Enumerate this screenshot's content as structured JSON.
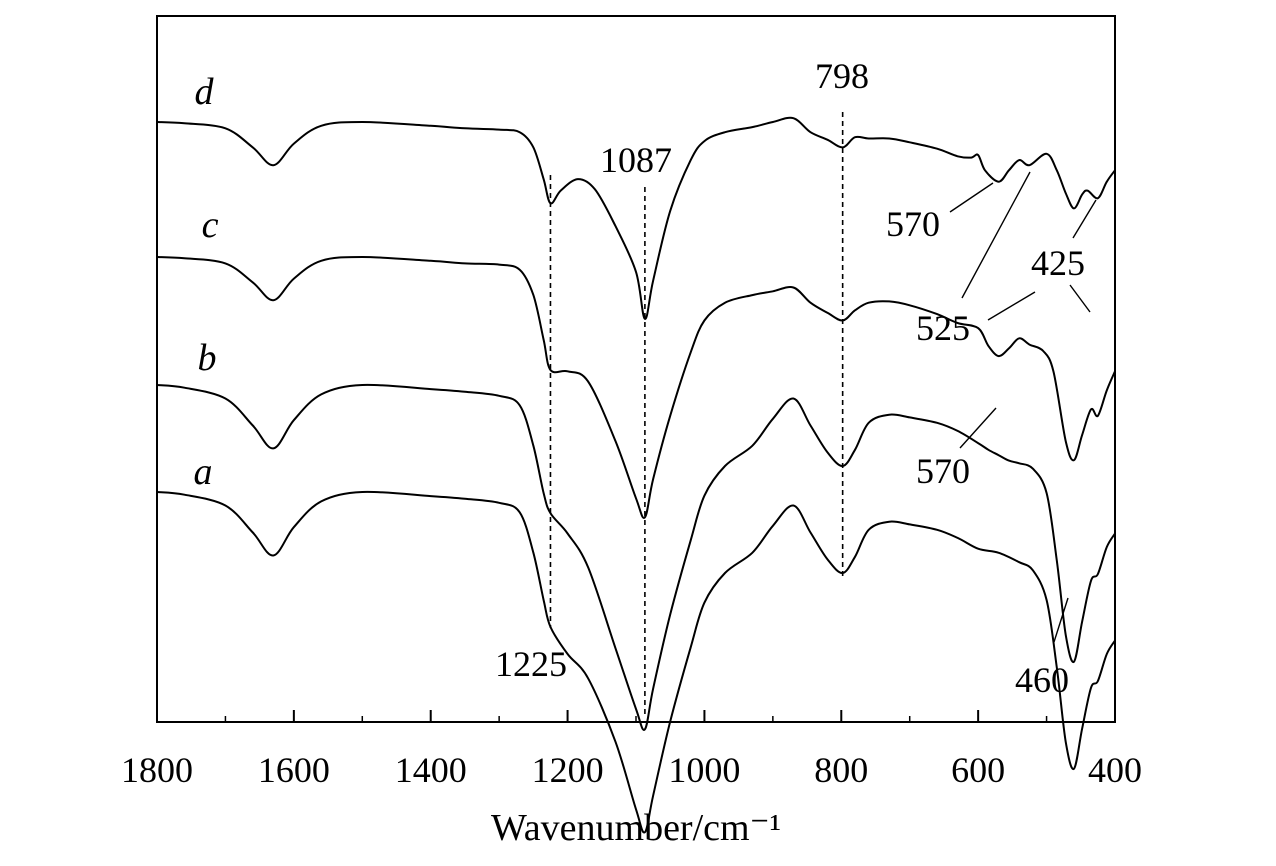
{
  "chart_data": {
    "type": "line",
    "xlabel": "Wavenumber/cm⁻¹",
    "ylabel": "",
    "xlim": [
      1800,
      400
    ],
    "x_ticks": [
      "1800",
      "1600",
      "1400",
      "1200",
      "1000",
      "800",
      "600",
      "400"
    ],
    "series": [
      {
        "name": "d",
        "points": [
          [
            1800,
            1.0
          ],
          [
            1760,
            0.99
          ],
          [
            1700,
            0.95
          ],
          [
            1660,
            0.8
          ],
          [
            1630,
            0.66
          ],
          [
            1600,
            0.83
          ],
          [
            1560,
            0.97
          ],
          [
            1500,
            1.0
          ],
          [
            1400,
            0.97
          ],
          [
            1350,
            0.95
          ],
          [
            1300,
            0.94
          ],
          [
            1270,
            0.92
          ],
          [
            1250,
            0.8
          ],
          [
            1235,
            0.55
          ],
          [
            1225,
            0.36
          ],
          [
            1210,
            0.46
          ],
          [
            1185,
            0.55
          ],
          [
            1160,
            0.47
          ],
          [
            1130,
            0.18
          ],
          [
            1100,
            -0.18
          ],
          [
            1087,
            -0.55
          ],
          [
            1075,
            -0.25
          ],
          [
            1050,
            0.3
          ],
          [
            1020,
            0.7
          ],
          [
            1000,
            0.85
          ],
          [
            970,
            0.92
          ],
          [
            930,
            0.96
          ],
          [
            900,
            1.0
          ],
          [
            870,
            1.03
          ],
          [
            845,
            0.92
          ],
          [
            820,
            0.86
          ],
          [
            798,
            0.8
          ],
          [
            780,
            0.88
          ],
          [
            760,
            0.87
          ],
          [
            730,
            0.87
          ],
          [
            700,
            0.84
          ],
          [
            660,
            0.79
          ],
          [
            630,
            0.73
          ],
          [
            610,
            0.72
          ],
          [
            600,
            0.74
          ],
          [
            590,
            0.62
          ],
          [
            570,
            0.53
          ],
          [
            555,
            0.62
          ],
          [
            540,
            0.7
          ],
          [
            525,
            0.66
          ],
          [
            500,
            0.75
          ],
          [
            485,
            0.62
          ],
          [
            472,
            0.44
          ],
          [
            460,
            0.32
          ],
          [
            448,
            0.43
          ],
          [
            440,
            0.46
          ],
          [
            425,
            0.4
          ],
          [
            412,
            0.53
          ],
          [
            400,
            0.62
          ]
        ]
      },
      {
        "name": "c",
        "points": [
          [
            1800,
            1.0
          ],
          [
            1760,
            0.99
          ],
          [
            1700,
            0.95
          ],
          [
            1660,
            0.8
          ],
          [
            1630,
            0.66
          ],
          [
            1600,
            0.83
          ],
          [
            1560,
            0.97
          ],
          [
            1500,
            1.0
          ],
          [
            1400,
            0.97
          ],
          [
            1350,
            0.95
          ],
          [
            1300,
            0.94
          ],
          [
            1270,
            0.9
          ],
          [
            1250,
            0.7
          ],
          [
            1235,
            0.35
          ],
          [
            1225,
            0.11
          ],
          [
            1200,
            0.1
          ],
          [
            1170,
            0.02
          ],
          [
            1130,
            -0.45
          ],
          [
            1100,
            -0.9
          ],
          [
            1087,
            -1.05
          ],
          [
            1075,
            -0.75
          ],
          [
            1050,
            -0.25
          ],
          [
            1020,
            0.25
          ],
          [
            1000,
            0.5
          ],
          [
            970,
            0.64
          ],
          [
            930,
            0.7
          ],
          [
            900,
            0.73
          ],
          [
            870,
            0.76
          ],
          [
            845,
            0.64
          ],
          [
            820,
            0.56
          ],
          [
            798,
            0.5
          ],
          [
            780,
            0.58
          ],
          [
            760,
            0.64
          ],
          [
            730,
            0.65
          ],
          [
            700,
            0.62
          ],
          [
            660,
            0.55
          ],
          [
            630,
            0.48
          ],
          [
            600,
            0.44
          ],
          [
            585,
            0.3
          ],
          [
            570,
            0.22
          ],
          [
            555,
            0.28
          ],
          [
            540,
            0.36
          ],
          [
            525,
            0.31
          ],
          [
            505,
            0.26
          ],
          [
            490,
            0.1
          ],
          [
            472,
            -0.45
          ],
          [
            460,
            -0.6
          ],
          [
            448,
            -0.4
          ],
          [
            435,
            -0.2
          ],
          [
            425,
            -0.25
          ],
          [
            412,
            -0.05
          ],
          [
            400,
            0.1
          ]
        ]
      },
      {
        "name": "b",
        "points": [
          [
            1800,
            1.0
          ],
          [
            1760,
            0.98
          ],
          [
            1700,
            0.9
          ],
          [
            1660,
            0.7
          ],
          [
            1630,
            0.53
          ],
          [
            1600,
            0.74
          ],
          [
            1560,
            0.93
          ],
          [
            1500,
            1.0
          ],
          [
            1400,
            0.97
          ],
          [
            1350,
            0.95
          ],
          [
            1300,
            0.92
          ],
          [
            1270,
            0.85
          ],
          [
            1250,
            0.55
          ],
          [
            1235,
            0.2
          ],
          [
            1225,
            0.05
          ],
          [
            1200,
            -0.1
          ],
          [
            1170,
            -0.35
          ],
          [
            1130,
            -0.95
          ],
          [
            1100,
            -1.4
          ],
          [
            1087,
            -1.55
          ],
          [
            1075,
            -1.25
          ],
          [
            1050,
            -0.7
          ],
          [
            1020,
            -0.15
          ],
          [
            1000,
            0.18
          ],
          [
            970,
            0.4
          ],
          [
            930,
            0.55
          ],
          [
            900,
            0.75
          ],
          [
            870,
            0.9
          ],
          [
            845,
            0.7
          ],
          [
            820,
            0.5
          ],
          [
            798,
            0.4
          ],
          [
            780,
            0.52
          ],
          [
            760,
            0.72
          ],
          [
            730,
            0.78
          ],
          [
            700,
            0.76
          ],
          [
            660,
            0.72
          ],
          [
            630,
            0.66
          ],
          [
            600,
            0.57
          ],
          [
            585,
            0.52
          ],
          [
            570,
            0.48
          ],
          [
            555,
            0.44
          ],
          [
            540,
            0.42
          ],
          [
            520,
            0.38
          ],
          [
            500,
            0.2
          ],
          [
            485,
            -0.3
          ],
          [
            472,
            -0.85
          ],
          [
            460,
            -1.05
          ],
          [
            448,
            -0.75
          ],
          [
            435,
            -0.45
          ],
          [
            425,
            -0.4
          ],
          [
            412,
            -0.2
          ],
          [
            400,
            -0.1
          ]
        ]
      },
      {
        "name": "a",
        "points": [
          [
            1800,
            1.0
          ],
          [
            1760,
            0.98
          ],
          [
            1700,
            0.9
          ],
          [
            1660,
            0.7
          ],
          [
            1630,
            0.53
          ],
          [
            1600,
            0.74
          ],
          [
            1560,
            0.93
          ],
          [
            1500,
            1.0
          ],
          [
            1400,
            0.97
          ],
          [
            1350,
            0.95
          ],
          [
            1300,
            0.92
          ],
          [
            1270,
            0.85
          ],
          [
            1250,
            0.55
          ],
          [
            1235,
            0.2
          ],
          [
            1225,
            0.0
          ],
          [
            1200,
            -0.2
          ],
          [
            1170,
            -0.38
          ],
          [
            1130,
            -0.85
          ],
          [
            1100,
            -1.35
          ],
          [
            1087,
            -1.52
          ],
          [
            1075,
            -1.25
          ],
          [
            1050,
            -0.7
          ],
          [
            1020,
            -0.15
          ],
          [
            1000,
            0.18
          ],
          [
            970,
            0.4
          ],
          [
            930,
            0.55
          ],
          [
            900,
            0.75
          ],
          [
            870,
            0.9
          ],
          [
            845,
            0.7
          ],
          [
            820,
            0.5
          ],
          [
            798,
            0.4
          ],
          [
            780,
            0.52
          ],
          [
            760,
            0.72
          ],
          [
            730,
            0.78
          ],
          [
            700,
            0.76
          ],
          [
            660,
            0.72
          ],
          [
            630,
            0.66
          ],
          [
            600,
            0.58
          ],
          [
            570,
            0.55
          ],
          [
            540,
            0.48
          ],
          [
            520,
            0.42
          ],
          [
            500,
            0.2
          ],
          [
            485,
            -0.3
          ],
          [
            472,
            -0.85
          ],
          [
            460,
            -1.05
          ],
          [
            448,
            -0.75
          ],
          [
            435,
            -0.45
          ],
          [
            425,
            -0.4
          ],
          [
            412,
            -0.2
          ],
          [
            400,
            -0.1
          ]
        ]
      }
    ],
    "reference_lines": [
      {
        "x": 1225,
        "label": "1225"
      },
      {
        "x": 1087,
        "label": "1087"
      },
      {
        "x": 798,
        "label": "798"
      }
    ],
    "annotations": [
      "570",
      "525",
      "425",
      "570",
      "460"
    ],
    "grid": false,
    "legend": "labels beside curves"
  }
}
